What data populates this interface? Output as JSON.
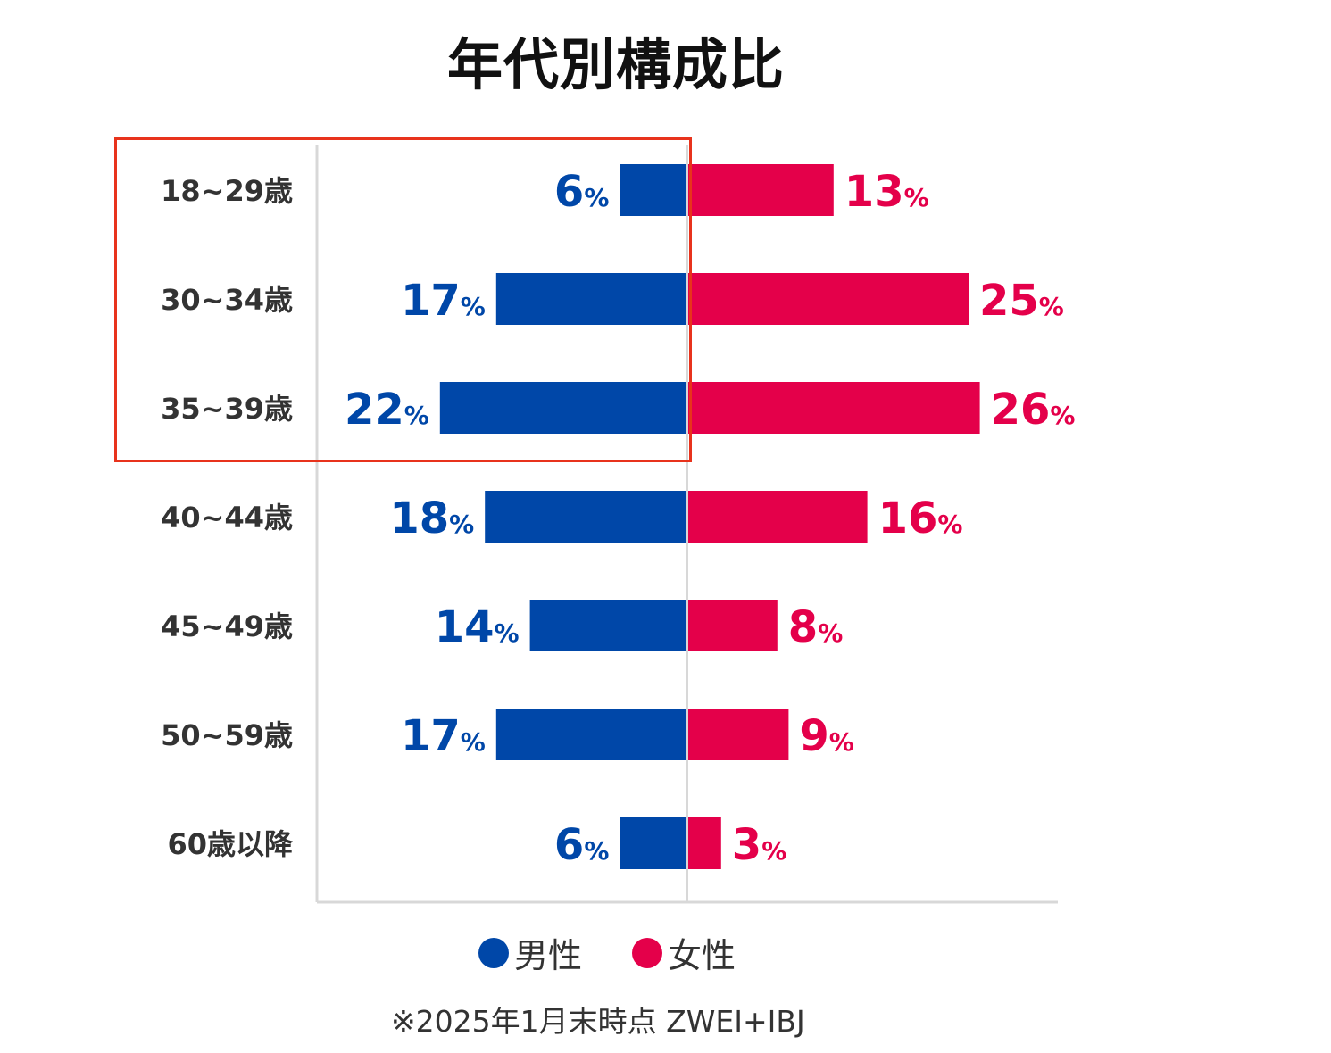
{
  "chart_data": {
    "type": "bar",
    "orientation": "horizontal-diverging",
    "title": "年代別構成比",
    "categories": [
      "18~29歳",
      "30~34歳",
      "35~39歳",
      "40~44歳",
      "45~49歳",
      "50~59歳",
      "60歳以降"
    ],
    "series": [
      {
        "name": "男性",
        "color": "#0047a8",
        "values": [
          6,
          17,
          22,
          18,
          14,
          17,
          6
        ]
      },
      {
        "name": "女性",
        "color": "#e4004a",
        "values": [
          13,
          25,
          26,
          16,
          8,
          9,
          3
        ]
      }
    ],
    "unit": "%",
    "legend_position": "bottom",
    "grid": false,
    "note": "※2025年1月末時点 ZWEI+IBJ",
    "highlight_color": "#e8331c",
    "highlighted_categories": [
      "18~29歳",
      "30~34歳",
      "35~39歳"
    ]
  }
}
